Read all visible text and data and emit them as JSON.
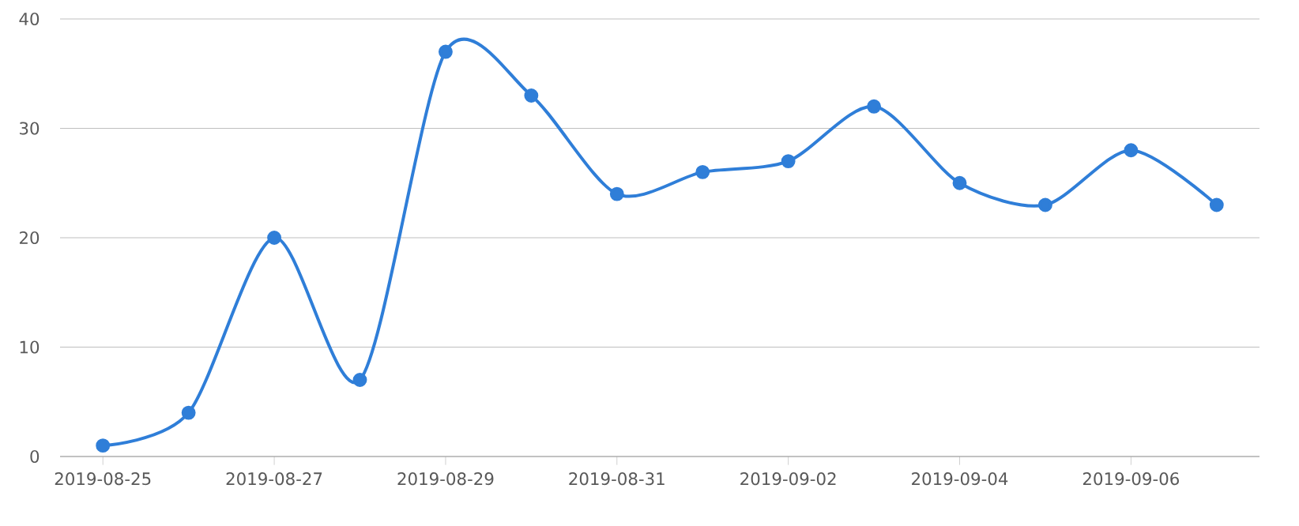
{
  "chart_data": {
    "type": "line",
    "x": [
      "2019-08-25",
      "2019-08-26",
      "2019-08-27",
      "2019-08-28",
      "2019-08-29",
      "2019-08-30",
      "2019-08-31",
      "2019-09-01",
      "2019-09-02",
      "2019-09-03",
      "2019-09-04",
      "2019-09-05",
      "2019-09-06",
      "2019-09-07"
    ],
    "series": [
      {
        "color": "#2f7ed8",
        "values": [
          1,
          4,
          20,
          7,
          37,
          33,
          24,
          26,
          27,
          32,
          25,
          23,
          28,
          23
        ]
      }
    ],
    "xlim": [
      "2019-08-24T12:00",
      "2019-09-07T12:00"
    ],
    "xticks": [
      "2019-08-25",
      "2019-08-27",
      "2019-08-29",
      "2019-08-31",
      "2019-09-02",
      "2019-09-04",
      "2019-09-06"
    ],
    "ylim": [
      0,
      40
    ],
    "yticks": [
      0,
      10,
      20,
      30,
      40
    ],
    "grid": "y",
    "marker": "circle",
    "line_style": "solid"
  }
}
